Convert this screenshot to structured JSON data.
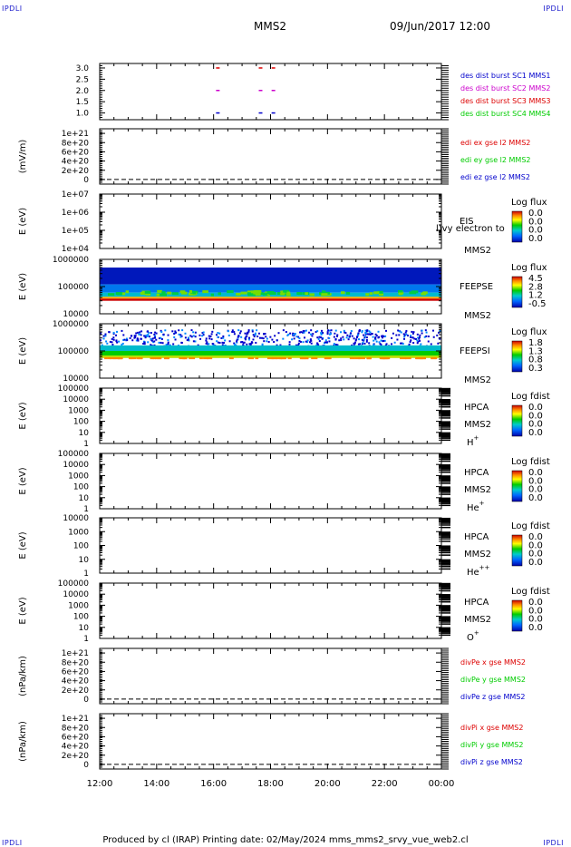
{
  "header": {
    "corner_label": "IPDLI",
    "center_title": "MMS2",
    "date_time": "09/Jun/2017 12:00"
  },
  "footer": {
    "text": "Produced by cl (IRAP)   Printing date: 02/May/2024   mms_mms2_srvy_vue_web2.cl"
  },
  "colors": {
    "red": "#dd0000",
    "magenta": "#cc00cc",
    "green": "#00cc00",
    "blue": "#0000cc",
    "darkblue": "#000099"
  },
  "chart_data": {
    "type": "multi-panel time series",
    "time_axis": {
      "ticks": [
        "12:00",
        "14:00",
        "16:00",
        "18:00",
        "20:00",
        "22:00",
        "00:00"
      ],
      "start_hour": 12,
      "end_hour": 24
    },
    "panels": [
      {
        "id": "des-dist-burst",
        "ylabel": "",
        "ticks": [
          "3.0",
          "2.5",
          "2.0",
          "1.5",
          "1.0"
        ],
        "tick_values": [
          3.0,
          2.5,
          2.0,
          1.5,
          1.0
        ],
        "ylim": [
          0.7,
          3.2
        ],
        "scale": "linear",
        "legend": [
          {
            "text": "des dist burst SC1 MMS1",
            "color": "#0000cc"
          },
          {
            "text": "des dist burst SC2 MMS2",
            "color": "#cc00cc"
          },
          {
            "text": "des dist burst SC3 MMS3",
            "color": "#dd0000"
          },
          {
            "text": "des dist burst SC4 MMS4",
            "color": "#00cc00"
          }
        ],
        "marks": [
          {
            "t": 16.15,
            "y": 3.0,
            "color": "#dd0000"
          },
          {
            "t": 17.65,
            "y": 3.0,
            "color": "#dd0000"
          },
          {
            "t": 18.1,
            "y": 3.0,
            "color": "#dd0000"
          },
          {
            "t": 16.15,
            "y": 2.0,
            "color": "#cc00cc"
          },
          {
            "t": 17.65,
            "y": 2.0,
            "color": "#cc00cc"
          },
          {
            "t": 18.1,
            "y": 2.0,
            "color": "#cc00cc"
          },
          {
            "t": 16.15,
            "y": 1.0,
            "color": "#0000cc"
          },
          {
            "t": 17.65,
            "y": 1.0,
            "color": "#0000cc"
          },
          {
            "t": 18.1,
            "y": 1.0,
            "color": "#0000cc"
          }
        ]
      },
      {
        "id": "edi-e-gse",
        "ylabel": "(mV/m)",
        "ticks": [
          "1e+21",
          "8e+20",
          "6e+20",
          "4e+20",
          "2e+20",
          "0"
        ],
        "tick_values": [
          1e+21,
          8e+20,
          6e+20,
          4e+20,
          2e+20,
          0
        ],
        "ylim": [
          -1e+20,
          1.1e+21
        ],
        "scale": "linear",
        "zero_line": true,
        "legend": [
          {
            "text": "edi ex gse l2 MMS2",
            "color": "#dd0000"
          },
          {
            "text": "edi ey gse l2 MMS2",
            "color": "#00cc00"
          },
          {
            "text": "edi ez gse l2 MMS2",
            "color": "#0000cc"
          }
        ]
      },
      {
        "id": "eis",
        "ylabel": "E (eV)",
        "ticks": [
          "1e+07",
          "1e+06",
          "1e+05",
          "1e+04"
        ],
        "tick_values": [
          10000000.0,
          1000000.0,
          100000.0,
          10000.0
        ],
        "ylim": [
          10000.0,
          10000000.0
        ],
        "scale": "log",
        "inst_label": "EIS",
        "inst_sub": "MMS2",
        "overlay_text": "l)vy electron to",
        "cbar_title": "Log flux",
        "cbar_ticks": [
          "0.0",
          "0.0",
          "0.0",
          "0.0"
        ]
      },
      {
        "id": "feeps-e",
        "ylabel": "E (eV)",
        "ticks": [
          "1000000",
          "100000",
          "10000"
        ],
        "tick_values": [
          1000000.0,
          100000.0,
          10000.0
        ],
        "ylim": [
          10000.0,
          1000000.0
        ],
        "scale": "log",
        "inst_label": "FEEPSE",
        "inst_sub": "MMS2",
        "cbar_title": "Log flux",
        "cbar_ticks": [
          "4.5",
          "2.8",
          "1.2",
          "-0.5"
        ],
        "spectrogram": "electron"
      },
      {
        "id": "feeps-i",
        "ylabel": "E (eV)",
        "ticks": [
          "1000000",
          "100000",
          "10000"
        ],
        "tick_values": [
          1000000.0,
          100000.0,
          10000.0
        ],
        "ylim": [
          10000.0,
          1000000.0
        ],
        "scale": "log",
        "inst_label": "FEEPSI",
        "inst_sub": "MMS2",
        "cbar_title": "Log flux",
        "cbar_ticks": [
          "1.8",
          "1.3",
          "0.8",
          "0.3"
        ],
        "spectrogram": "ion"
      },
      {
        "id": "hpca-h",
        "ylabel": "E (eV)",
        "ticks": [
          "100000",
          "10000",
          "1000",
          "100",
          "10",
          "1"
        ],
        "tick_values": [
          100000.0,
          10000.0,
          1000.0,
          100.0,
          10.0,
          1
        ],
        "ylim": [
          1,
          100000.0
        ],
        "scale": "log",
        "inst_label": "HPCA",
        "inst_sub": "MMS2",
        "species": "H",
        "charge": "+",
        "cbar_title": "Log fdist",
        "cbar_ticks": [
          "0.0",
          "0.0",
          "0.0",
          "0.0"
        ],
        "right_ticks": true
      },
      {
        "id": "hpca-he",
        "ylabel": "E (eV)",
        "ticks": [
          "100000",
          "10000",
          "1000",
          "100",
          "10",
          "1"
        ],
        "tick_values": [
          100000.0,
          10000.0,
          1000.0,
          100.0,
          10.0,
          1
        ],
        "ylim": [
          1,
          100000.0
        ],
        "scale": "log",
        "inst_label": "HPCA",
        "inst_sub": "MMS2",
        "species": "He",
        "charge": "+",
        "cbar_title": "Log fdist",
        "cbar_ticks": [
          "0.0",
          "0.0",
          "0.0",
          "0.0"
        ],
        "right_ticks": true
      },
      {
        "id": "hpca-he2",
        "ylabel": "E (eV)",
        "ticks": [
          "10000",
          "1000",
          "100",
          "10",
          "1"
        ],
        "tick_values": [
          10000.0,
          1000.0,
          100.0,
          10.0,
          1
        ],
        "ylim": [
          1,
          10000.0
        ],
        "scale": "log",
        "inst_label": "HPCA",
        "inst_sub": "MMS2",
        "species": "He",
        "charge": "++",
        "cbar_title": "Log fdist",
        "cbar_ticks": [
          "0.0",
          "0.0",
          "0.0",
          "0.0"
        ],
        "right_ticks": true
      },
      {
        "id": "hpca-o",
        "ylabel": "E (eV)",
        "ticks": [
          "100000",
          "10000",
          "1000",
          "100",
          "10",
          "1"
        ],
        "tick_values": [
          100000.0,
          10000.0,
          1000.0,
          100.0,
          10.0,
          1
        ],
        "ylim": [
          1,
          100000.0
        ],
        "scale": "log",
        "inst_label": "HPCA",
        "inst_sub": "MMS2",
        "species": "O",
        "charge": "+",
        "cbar_title": "Log fdist",
        "cbar_ticks": [
          "0.0",
          "0.0",
          "0.0",
          "0.0"
        ],
        "right_ticks": true
      },
      {
        "id": "divpe",
        "ylabel": "(nPa/km)",
        "ticks": [
          "1e+21",
          "8e+20",
          "6e+20",
          "4e+20",
          "2e+20",
          "0"
        ],
        "tick_values": [
          1e+21,
          8e+20,
          6e+20,
          4e+20,
          2e+20,
          0
        ],
        "ylim": [
          -1e+20,
          1.1e+21
        ],
        "scale": "linear",
        "zero_line": true,
        "legend": [
          {
            "text": "divPe x gse MMS2",
            "color": "#dd0000"
          },
          {
            "text": "divPe y gse MMS2",
            "color": "#00cc00"
          },
          {
            "text": "divPe z gse MMS2",
            "color": "#0000cc"
          }
        ]
      },
      {
        "id": "divpi",
        "ylabel": "(nPa/km)",
        "ticks": [
          "1e+21",
          "8e+20",
          "6e+20",
          "4e+20",
          "2e+20",
          "0"
        ],
        "tick_values": [
          1e+21,
          8e+20,
          6e+20,
          4e+20,
          2e+20,
          0
        ],
        "ylim": [
          -1e+20,
          1.1e+21
        ],
        "scale": "linear",
        "zero_line": true,
        "legend": [
          {
            "text": "divPi x gse MMS2",
            "color": "#dd0000"
          },
          {
            "text": "divPi y gse MMS2",
            "color": "#00cc00"
          },
          {
            "text": "divPi z gse MMS2",
            "color": "#0000cc"
          }
        ]
      }
    ]
  }
}
